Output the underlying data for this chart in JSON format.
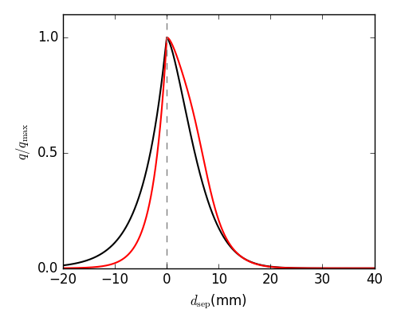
{
  "title": "",
  "xlabel": "$d_\\mathrm{sep}$(mm)",
  "ylabel": "$q/q_\\mathrm{max}$",
  "xlim": [
    -20,
    40
  ],
  "ylim": [
    0.0,
    1.1
  ],
  "xticks": [
    -20,
    -10,
    0,
    10,
    20,
    30,
    40
  ],
  "yticks": [
    0.0,
    0.5,
    1.0
  ],
  "vline_x": 0,
  "vline_color": "#808080",
  "vline_style": "--",
  "black_color": "#000000",
  "red_color": "#ff0000",
  "linewidth": 1.5,
  "figsize": [
    4.98,
    4.08
  ],
  "dpi": 100,
  "style": "classic"
}
